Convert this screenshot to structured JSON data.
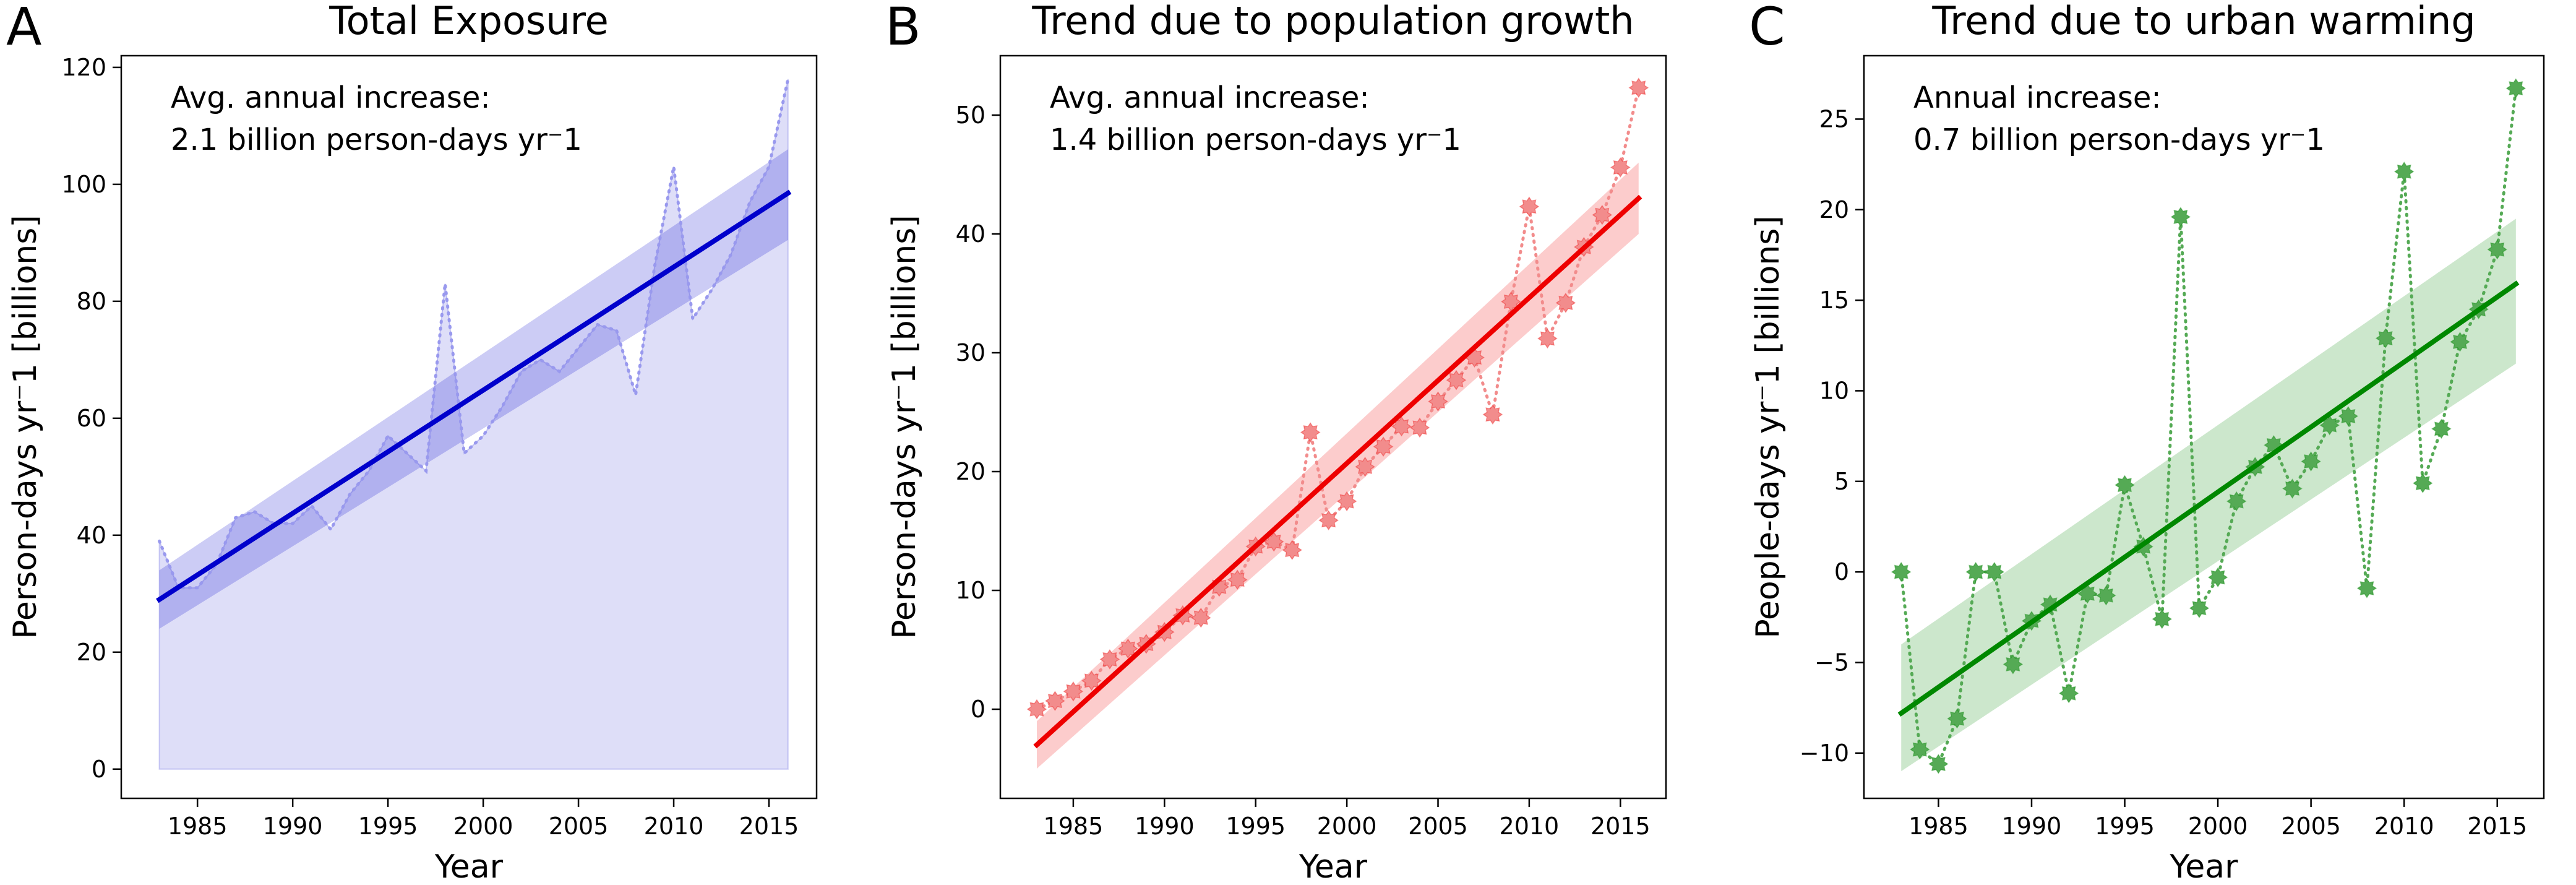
{
  "figure": {
    "panels": [
      {
        "letter": "A",
        "title": "Total Exposure",
        "annot_line1": "Avg. annual increase:",
        "annot_line2": "2.1 billion person-days yr⁻1",
        "ylabel": "Person-days yr⁻1 [billions]",
        "xlabel": "Year"
      },
      {
        "letter": "B",
        "title": "Trend due to population growth",
        "annot_line1": "Avg. annual increase:",
        "annot_line2": "1.4 billion person-days yr⁻1",
        "ylabel": "Person-days yr⁻1  [billions]",
        "xlabel": "Year"
      },
      {
        "letter": "C",
        "title": "Trend due to urban warming",
        "annot_line1": "Annual increase:",
        "annot_line2": "0.7 billion person-days yr⁻1",
        "ylabel": "People-days yr⁻1 [billions]",
        "xlabel": "Year"
      }
    ]
  },
  "chart_data": [
    {
      "type": "line",
      "title": "Total Exposure",
      "xlabel": "Year",
      "ylabel": "Person-days yr⁻1 [billions]",
      "xlim": [
        1981,
        2017.5
      ],
      "ylim": [
        -5,
        122
      ],
      "xticks": [
        1985,
        1990,
        1995,
        2000,
        2005,
        2010,
        2015
      ],
      "yticks": [
        0,
        20,
        40,
        60,
        80,
        100,
        120
      ],
      "color": "#0000cc",
      "light_color": "#9999ee",
      "marker": "none",
      "fill_to_zero": true,
      "x": [
        1983,
        1984,
        1985,
        1986,
        1987,
        1988,
        1989,
        1990,
        1991,
        1992,
        1993,
        1994,
        1995,
        1996,
        1997,
        1998,
        1999,
        2000,
        2001,
        2002,
        2003,
        2004,
        2005,
        2006,
        2007,
        2008,
        2009,
        2010,
        2011,
        2012,
        2013,
        2014,
        2015,
        2016
      ],
      "values": [
        39,
        31,
        31,
        35,
        43,
        44,
        42,
        42,
        45,
        41,
        47,
        51,
        57,
        54,
        51,
        83,
        54,
        57,
        62,
        68,
        70,
        68,
        72,
        76,
        75,
        64,
        86,
        103,
        77,
        82,
        88,
        97,
        103,
        118
      ],
      "trend": {
        "start": [
          1983,
          29
        ],
        "end": [
          2016,
          98.5
        ]
      },
      "band": {
        "lower_start": 24,
        "upper_start": 34,
        "lower_end": 90.5,
        "upper_end": 106
      }
    },
    {
      "type": "line",
      "title": "Trend due to population growth",
      "xlabel": "Year",
      "ylabel": "Person-days yr⁻1  [billions]",
      "xlim": [
        1981,
        2017.5
      ],
      "ylim": [
        -7.5,
        55
      ],
      "xticks": [
        1985,
        1990,
        1995,
        2000,
        2005,
        2010,
        2015
      ],
      "yticks": [
        0,
        10,
        20,
        30,
        40,
        50
      ],
      "color": "#ee0000",
      "light_color": "#f28c8c",
      "marker": "star",
      "fill_to_zero": false,
      "x": [
        1983,
        1984,
        1985,
        1986,
        1987,
        1988,
        1989,
        1990,
        1991,
        1992,
        1993,
        1994,
        1995,
        1996,
        1997,
        1998,
        1999,
        2000,
        2001,
        2002,
        2003,
        2004,
        2005,
        2006,
        2007,
        2008,
        2009,
        2010,
        2011,
        2012,
        2013,
        2014,
        2015,
        2016
      ],
      "values": [
        0,
        0.7,
        1.5,
        2.4,
        4.2,
        5.1,
        5.5,
        6.5,
        7.9,
        7.7,
        10.3,
        10.9,
        13.7,
        14.1,
        13.4,
        23.3,
        15.9,
        17.5,
        20.4,
        22.1,
        23.8,
        23.7,
        25.9,
        27.7,
        29.6,
        24.8,
        34.3,
        42.3,
        31.2,
        34.2,
        38.9,
        41.6,
        45.6,
        52.3
      ],
      "trend": {
        "start": [
          1983,
          -3
        ],
        "end": [
          2016,
          43
        ]
      },
      "band": {
        "lower_start": -5,
        "upper_start": -1,
        "lower_end": 40,
        "upper_end": 46
      }
    },
    {
      "type": "line",
      "title": "Trend due to urban warming",
      "xlabel": "Year",
      "ylabel": "People-days yr⁻1 [billions]",
      "xlim": [
        1981,
        2017.5
      ],
      "ylim": [
        -12.5,
        28.5
      ],
      "xticks": [
        1985,
        1990,
        1995,
        2000,
        2005,
        2010,
        2015
      ],
      "yticks": [
        -10,
        -5,
        0,
        5,
        10,
        15,
        20,
        25
      ],
      "color": "#008800",
      "light_color": "#55aa55",
      "marker": "star",
      "fill_to_zero": false,
      "x": [
        1983,
        1984,
        1985,
        1986,
        1987,
        1988,
        1989,
        1990,
        1991,
        1992,
        1993,
        1994,
        1995,
        1996,
        1997,
        1998,
        1999,
        2000,
        2001,
        2002,
        2003,
        2004,
        2005,
        2006,
        2007,
        2008,
        2009,
        2010,
        2011,
        2012,
        2013,
        2014,
        2015,
        2016
      ],
      "values": [
        0,
        -9.8,
        -10.6,
        -8.1,
        0,
        0,
        -5.1,
        -2.7,
        -1.8,
        -6.7,
        -1.2,
        -1.3,
        4.8,
        1.4,
        -2.6,
        19.6,
        -2,
        -0.3,
        3.9,
        5.8,
        7,
        4.6,
        6.1,
        8.1,
        8.6,
        -0.9,
        12.9,
        22.1,
        4.9,
        7.9,
        12.7,
        14.5,
        17.8,
        26.7
      ],
      "trend": {
        "start": [
          1983,
          -7.8
        ],
        "end": [
          2016,
          15.9
        ]
      },
      "band": {
        "lower_start": -11,
        "upper_start": -4,
        "lower_end": 11.5,
        "upper_end": 19.5
      }
    }
  ]
}
